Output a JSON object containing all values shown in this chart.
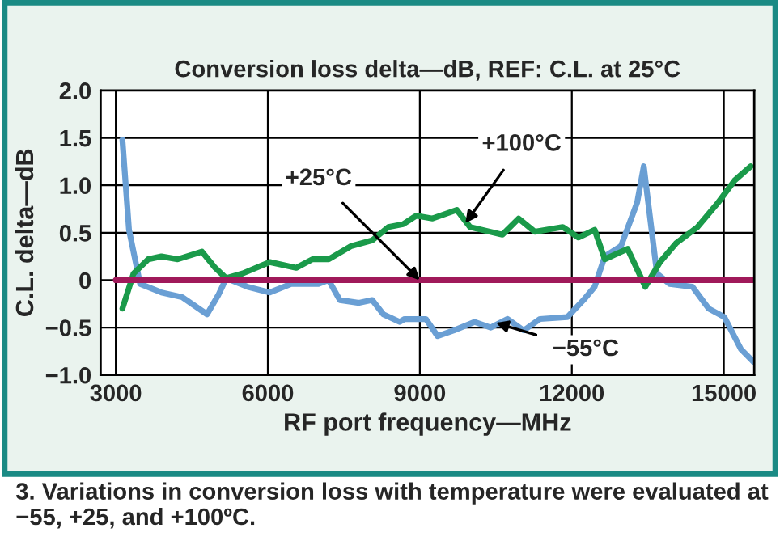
{
  "chart_data": {
    "type": "line",
    "title": "Conversion loss delta—dB, REF: C.L. at 25°C",
    "xlabel": "RF port frequency—MHz",
    "ylabel": "C.L. delta—dB",
    "xlim": [
      2700,
      15600
    ],
    "xticks": [
      3000,
      6000,
      9000,
      12000,
      15000
    ],
    "ylim": [
      -1.0,
      2.0
    ],
    "yticks": [
      {
        "value": -1.0,
        "label": "−1.0"
      },
      {
        "value": -0.5,
        "label": "−0.5"
      },
      {
        "value": 0,
        "label": "0"
      },
      {
        "value": 0.5,
        "label": "0.5"
      },
      {
        "value": 1.0,
        "label": "1.0"
      },
      {
        "value": 1.5,
        "label": "1.5"
      },
      {
        "value": 2.0,
        "label": "2.0"
      }
    ],
    "grid": true,
    "marker": "none",
    "line_style": "solid",
    "series": [
      {
        "color": "#6a9fd4",
        "x": [
          3130,
          3260,
          3480,
          3900,
          4310,
          4800,
          5020,
          5180,
          5600,
          6040,
          6460,
          7000,
          7200,
          7420,
          7800,
          8060,
          8280,
          8600,
          8700,
          9120,
          9350,
          9670,
          10080,
          10400,
          10730,
          11050,
          11370,
          11910,
          12230,
          12450,
          12650,
          12970,
          13290,
          13420,
          13520,
          13680,
          13930,
          14380,
          14700,
          15010,
          15340,
          15600
        ],
        "values": [
          1.48,
          0.53,
          -0.04,
          -0.13,
          -0.18,
          -0.36,
          -0.16,
          0.02,
          -0.07,
          -0.13,
          -0.04,
          -0.04,
          0,
          -0.21,
          -0.24,
          -0.21,
          -0.36,
          -0.44,
          -0.41,
          -0.41,
          -0.59,
          -0.53,
          -0.44,
          -0.5,
          -0.41,
          -0.53,
          -0.41,
          -0.39,
          -0.21,
          -0.07,
          0.25,
          0.36,
          0.82,
          1.2,
          0.76,
          0.07,
          -0.04,
          -0.07,
          -0.3,
          -0.39,
          -0.73,
          -0.87
        ]
      },
      {
        "color": "#1a9a4a",
        "x": [
          3130,
          3350,
          3640,
          3900,
          4220,
          4700,
          4960,
          5180,
          5500,
          6040,
          6560,
          6880,
          7200,
          7650,
          8060,
          8380,
          8670,
          8930,
          9250,
          9730,
          9990,
          10630,
          10950,
          11270,
          11820,
          12130,
          12450,
          12650,
          13100,
          13450,
          13740,
          14060,
          14480,
          14890,
          15210,
          15530
        ],
        "values": [
          -0.3,
          0.07,
          0.22,
          0.25,
          0.22,
          0.3,
          0.13,
          0.02,
          0.07,
          0.19,
          0.13,
          0.22,
          0.22,
          0.36,
          0.42,
          0.56,
          0.59,
          0.68,
          0.65,
          0.74,
          0.56,
          0.48,
          0.65,
          0.51,
          0.56,
          0.45,
          0.53,
          0.22,
          0.33,
          -0.07,
          0.19,
          0.39,
          0.56,
          0.82,
          1.05,
          1.2
        ]
      },
      {
        "color": "#a0195a",
        "x": [
          3000,
          15600
        ],
        "values": [
          0,
          0
        ]
      }
    ],
    "annotations": [
      {
        "text": "+25°C",
        "x": 9000,
        "y": 0
      },
      {
        "text": "+100°C",
        "x": 9900,
        "y": 0.6
      },
      {
        "text": "−55°C",
        "x": 10500,
        "y": -0.45
      },
      "3. Variations in conversion loss with temperature were evaluated at −55, +25, and +100ºC."
    ]
  }
}
